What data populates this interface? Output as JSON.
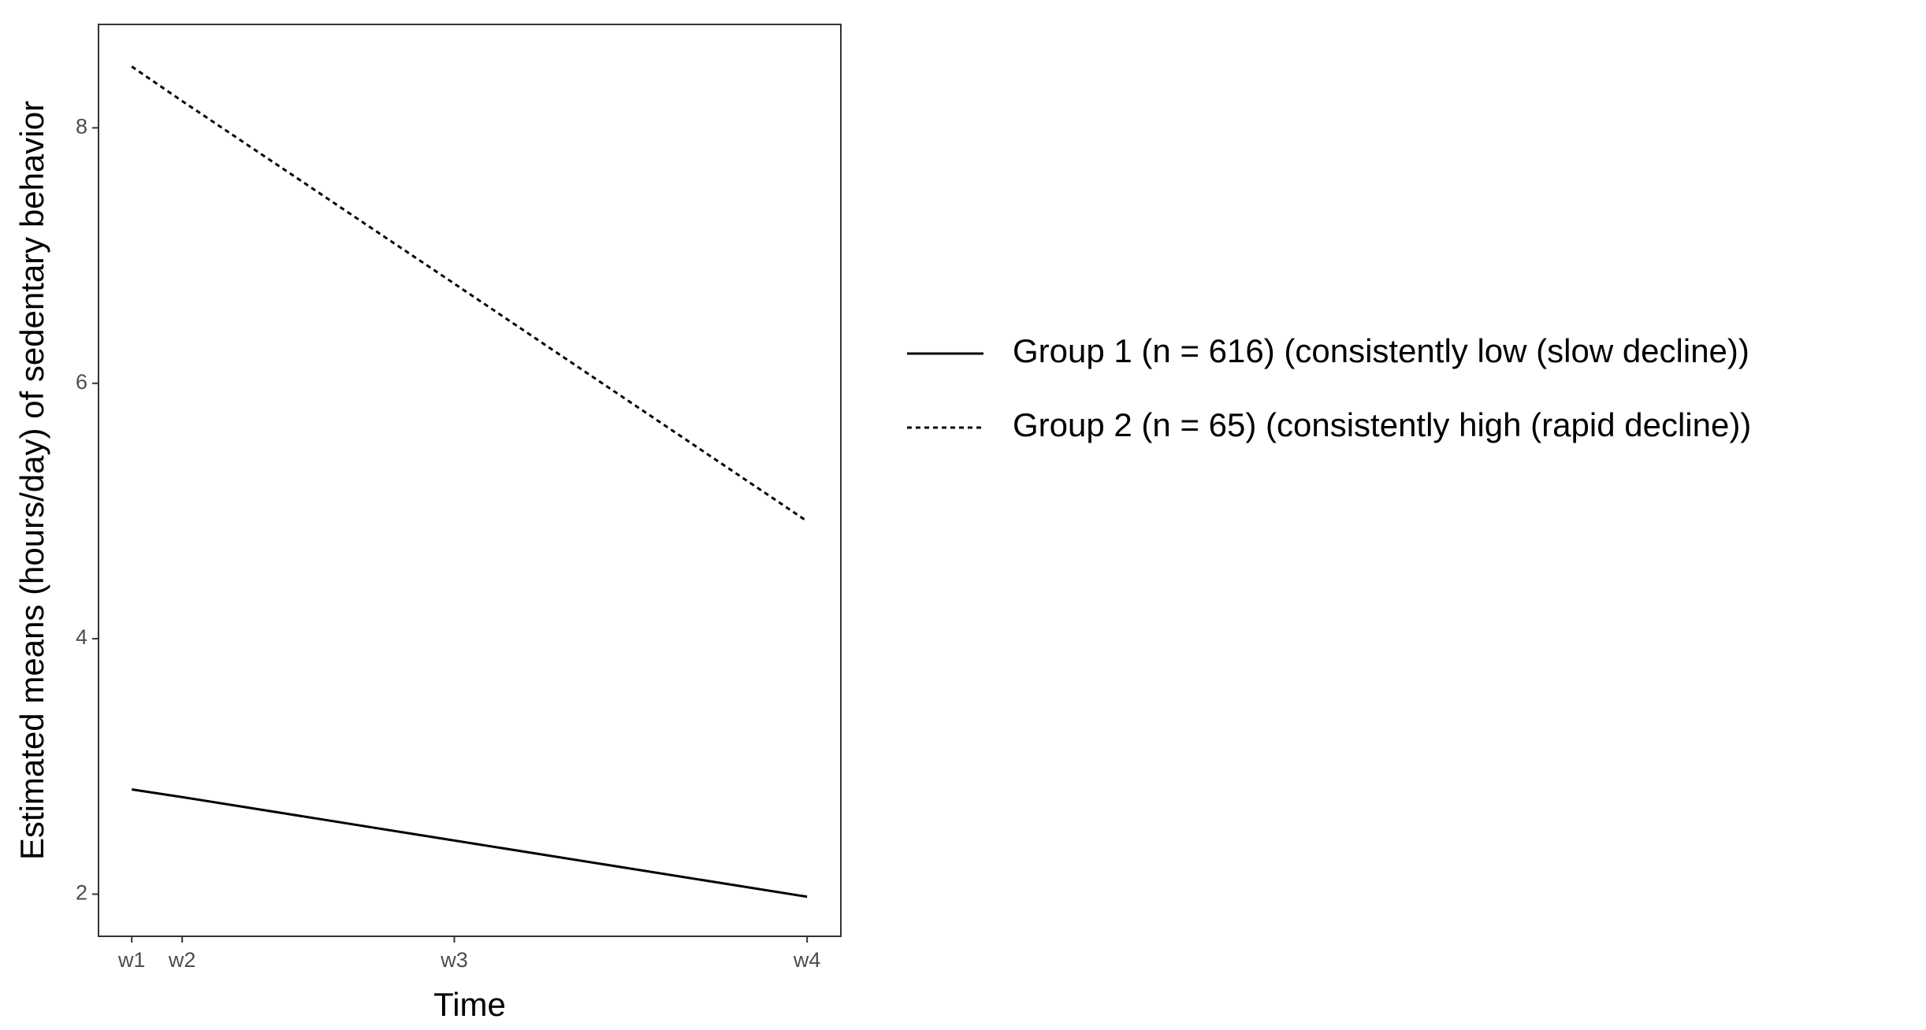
{
  "chart_data": {
    "type": "line",
    "x_label": "Time",
    "y_label": "Estimated means (hours/day) of sedentary behavior",
    "x": [
      0,
      1,
      6.4,
      13.4
    ],
    "xlim": [
      -0.66,
      14.07
    ],
    "xticks": [
      {
        "value": 0,
        "label": "w1"
      },
      {
        "value": 1,
        "label": "w2"
      },
      {
        "value": 6.4,
        "label": "w3"
      },
      {
        "value": 13.4,
        "label": "w4"
      }
    ],
    "ylim": [
      1.67,
      8.81
    ],
    "yticks": [
      2,
      4,
      6,
      8
    ],
    "grid": false,
    "legend": "right",
    "series": [
      {
        "name": "Group 1 (n = 616) (consistently low (slow decline))",
        "color": "#000000",
        "dash": "solid",
        "values": [
          2.82,
          2.76,
          2.42,
          1.98
        ]
      },
      {
        "name": "Group 2 (n = 65) (consistently high (rapid decline))",
        "color": "#000000",
        "dash": "dashed",
        "values": [
          8.48,
          8.21,
          6.78,
          4.92
        ]
      }
    ]
  }
}
